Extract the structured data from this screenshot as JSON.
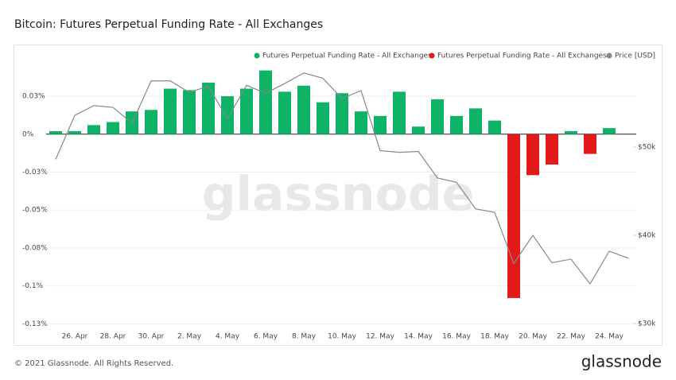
{
  "chart_data": {
    "type": "bar",
    "title": "Bitcoin: Futures Perpetual Funding Rate - All Exchanges",
    "watermark": "glassnode",
    "footer": "© 2021 Glassnode. All Rights Reserved.",
    "logo": "glassnode",
    "categories": [
      null,
      "26. Apr",
      null,
      "28. Apr",
      null,
      "30. Apr",
      null,
      "2. May",
      null,
      "4. May",
      null,
      "6. May",
      null,
      "8. May",
      null,
      "10. May",
      null,
      "12. May",
      null,
      "14. May",
      null,
      "16. May",
      null,
      "18. May",
      null,
      "20. May",
      null,
      "22. May",
      null,
      "24. May",
      null
    ],
    "series": [
      {
        "name": "Futures Perpetual Funding Rate - All Exchanges",
        "color": "#0fb367",
        "values": [
          0.002,
          0.002,
          0.006,
          0.008,
          0.015,
          0.016,
          0.03,
          0.029,
          0.034,
          0.025,
          0.03,
          0.042,
          0.028,
          0.032,
          0.021,
          0.027,
          0.015,
          0.012,
          0.028,
          0.005,
          0.023,
          0.012,
          0.017,
          0.009,
          null,
          null,
          null,
          0.002,
          null,
          0.004,
          null
        ]
      },
      {
        "name": "Futures Perpetual Funding Rate - All Exchanges",
        "color": "#e41a1a",
        "values": [
          null,
          null,
          null,
          null,
          null,
          null,
          null,
          null,
          null,
          null,
          null,
          null,
          null,
          null,
          null,
          null,
          null,
          null,
          null,
          null,
          null,
          null,
          null,
          null,
          -0.108,
          -0.027,
          -0.02,
          null,
          -0.013,
          null,
          null
        ]
      },
      {
        "name": "Price [USD]",
        "color": "#888888",
        "axis": "y2",
        "values": [
          48600,
          53600,
          54700,
          54500,
          52700,
          57500,
          57500,
          56200,
          56900,
          53200,
          57000,
          56100,
          57200,
          58400,
          57800,
          55500,
          56400,
          49600,
          49400,
          49500,
          46500,
          46000,
          43000,
          42600,
          36800,
          40000,
          36900,
          37300,
          34500,
          38200,
          37400
        ]
      }
    ],
    "ylim": [
      -0.129,
      0.057
    ],
    "yticks": [
      {
        "value": 0.025,
        "label": "0.03%"
      },
      {
        "value": 0,
        "label": "0%"
      },
      {
        "value": -0.025,
        "label": "-0.03%"
      },
      {
        "value": -0.05,
        "label": "-0.05%"
      },
      {
        "value": -0.075,
        "label": "-0.08%"
      },
      {
        "value": -0.1,
        "label": "-0.1%"
      },
      {
        "value": -0.125,
        "label": "-0.13%"
      }
    ],
    "y2lim": [
      29280,
      61260
    ],
    "y2ticks": [
      {
        "value": 50000,
        "label": "$50k"
      },
      {
        "value": 40000,
        "label": "$40k"
      },
      {
        "value": 30000,
        "label": "$30k"
      }
    ],
    "grid": true,
    "legend": "top-right"
  }
}
